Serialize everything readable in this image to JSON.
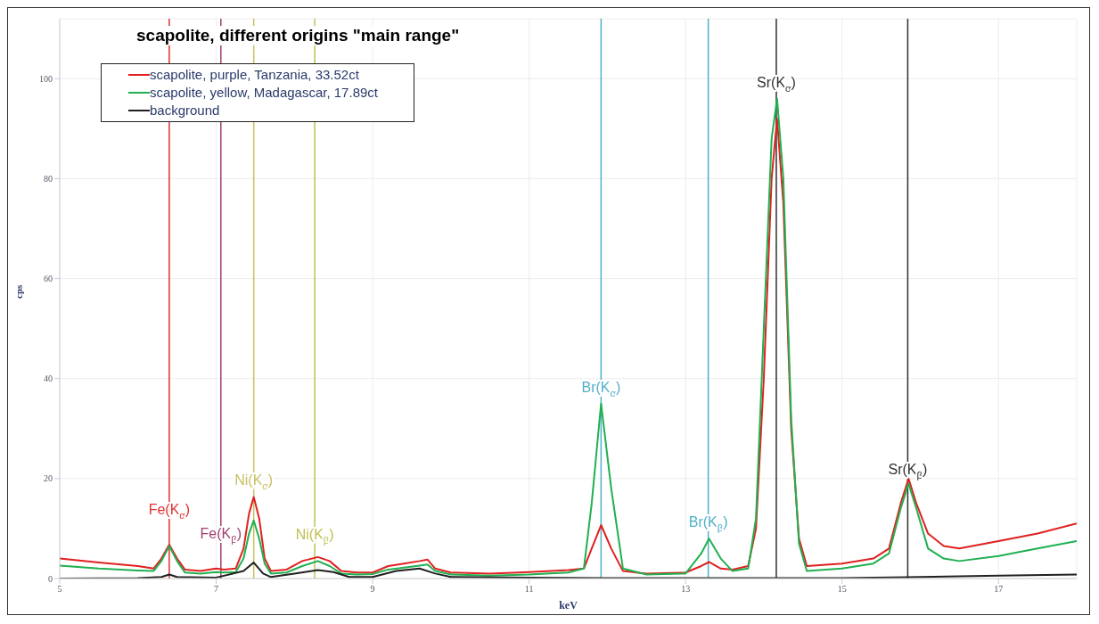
{
  "chart_data": {
    "type": "line",
    "title": "scapolite, different origins \"main range\"",
    "xlabel": "keV",
    "ylabel": "cps",
    "xlim": [
      5,
      18
    ],
    "xticks": [
      5,
      7,
      9,
      11,
      13,
      15,
      17
    ],
    "ylim": [
      0,
      112
    ],
    "yticks": [
      0,
      20,
      40,
      60,
      80,
      100
    ],
    "grid": true,
    "legend": "top left",
    "marker": "none",
    "line_style": "solid",
    "series": [
      {
        "name": "scapolite, purple, Tanzania, 33.52ct",
        "color": "#e02020",
        "x": [
          5.0,
          5.5,
          6.0,
          6.2,
          6.3,
          6.4,
          6.5,
          6.6,
          6.8,
          7.0,
          7.1,
          7.25,
          7.35,
          7.42,
          7.48,
          7.55,
          7.62,
          7.7,
          7.9,
          8.1,
          8.3,
          8.45,
          8.6,
          8.8,
          9.0,
          9.2,
          9.4,
          9.6,
          9.7,
          9.8,
          10.0,
          10.5,
          11.0,
          11.5,
          11.7,
          11.8,
          11.92,
          12.05,
          12.2,
          12.5,
          13.0,
          13.2,
          13.3,
          13.45,
          13.6,
          13.8,
          13.9,
          14.0,
          14.1,
          14.17,
          14.25,
          14.35,
          14.45,
          14.55,
          15.0,
          15.4,
          15.6,
          15.75,
          15.85,
          15.95,
          16.1,
          16.3,
          16.5,
          17.0,
          17.5,
          18.0
        ],
        "values": [
          4,
          3.2,
          2.5,
          2,
          4,
          6.8,
          4,
          1.8,
          1.5,
          2,
          1.8,
          2,
          6,
          13,
          16.3,
          12,
          4,
          1.5,
          1.8,
          3.5,
          4.3,
          3.5,
          1.5,
          1.2,
          1.2,
          2.5,
          3,
          3.5,
          3.8,
          2,
          1.2,
          1,
          1.3,
          1.7,
          2,
          6,
          10.7,
          6,
          1.5,
          1,
          1.2,
          2.5,
          3.3,
          2,
          1.8,
          2.5,
          10,
          40,
          80,
          92,
          75,
          30,
          8,
          2.5,
          3,
          4,
          6,
          15,
          20,
          15,
          9,
          6.5,
          6,
          7.5,
          9,
          11
        ]
      },
      {
        "name": "scapolite, yellow, Madagascar, 17.89ct",
        "color": "#20b050",
        "x": [
          5.0,
          5.5,
          6.0,
          6.2,
          6.3,
          6.4,
          6.5,
          6.6,
          6.8,
          7.0,
          7.1,
          7.25,
          7.35,
          7.42,
          7.48,
          7.55,
          7.62,
          7.7,
          7.9,
          8.1,
          8.3,
          8.45,
          8.6,
          8.8,
          9.0,
          9.2,
          9.4,
          9.6,
          9.7,
          9.8,
          10.0,
          10.5,
          11.0,
          11.5,
          11.7,
          11.8,
          11.92,
          12.05,
          12.2,
          12.5,
          13.0,
          13.2,
          13.3,
          13.45,
          13.6,
          13.8,
          13.9,
          14.0,
          14.1,
          14.17,
          14.25,
          14.35,
          14.45,
          14.55,
          15.0,
          15.4,
          15.6,
          15.75,
          15.85,
          15.95,
          16.1,
          16.3,
          16.5,
          17.0,
          17.5,
          18.0
        ],
        "values": [
          2.6,
          2,
          1.6,
          1.5,
          3.5,
          6.5,
          3.5,
          1.2,
          1,
          1.3,
          1.2,
          1.3,
          4,
          9,
          11.6,
          8,
          3,
          1,
          1.2,
          2.5,
          3.5,
          2.5,
          1,
          0.8,
          0.9,
          1.8,
          2.2,
          2.6,
          2.8,
          1.5,
          0.8,
          0.6,
          0.8,
          1.2,
          2,
          15,
          35,
          18,
          2,
          0.8,
          1,
          5,
          8,
          4,
          1.5,
          2,
          12,
          50,
          88,
          96,
          80,
          32,
          7,
          1.5,
          2,
          3,
          5,
          14,
          19,
          14,
          6,
          4,
          3.5,
          4.5,
          6,
          7.5
        ]
      },
      {
        "name": "background",
        "color": "#202020",
        "x": [
          5.0,
          6.0,
          6.3,
          6.4,
          6.5,
          7.0,
          7.35,
          7.48,
          7.6,
          7.7,
          8.0,
          8.3,
          8.5,
          8.7,
          9.0,
          9.3,
          9.6,
          9.8,
          10.0,
          11.0,
          12.0,
          13.0,
          14.0,
          15.0,
          16.0,
          17.0,
          18.0
        ],
        "values": [
          0,
          0.1,
          0.3,
          0.8,
          0.3,
          0.2,
          1.5,
          3.2,
          1,
          0.3,
          1,
          1.7,
          1.3,
          0.3,
          0.3,
          1.5,
          2,
          1,
          0.3,
          0.2,
          0.1,
          0.1,
          0.1,
          0.1,
          0.3,
          0.6,
          0.8
        ]
      }
    ],
    "ref_lines": [
      {
        "axis": "x",
        "value": 6.4,
        "color": "#e03030"
      },
      {
        "axis": "x",
        "value": 7.06,
        "color": "#a04070"
      },
      {
        "axis": "x",
        "value": 7.48,
        "color": "#c8c060"
      },
      {
        "axis": "x",
        "value": 8.26,
        "color": "#c0c050"
      },
      {
        "axis": "x",
        "value": 11.92,
        "color": "#50b0c8"
      },
      {
        "axis": "x",
        "value": 13.29,
        "color": "#50b0c8"
      },
      {
        "axis": "x",
        "value": 14.16,
        "color": "#303030"
      },
      {
        "axis": "x",
        "value": 15.84,
        "color": "#303030"
      }
    ],
    "annotations": [
      {
        "text": "Fe(K$_{α}$)",
        "x": 6.4,
        "y": 13.5
      },
      {
        "text": "Fe(K$_{β}$)",
        "x": 7.06,
        "y": 8.7
      },
      {
        "text": "Ni(K$_{α}$)",
        "x": 7.48,
        "y": 19.5
      },
      {
        "text": "Ni(K$_{β}$)",
        "x": 8.26,
        "y": 8.5
      },
      {
        "text": "Br(K$_{α}$)",
        "x": 11.92,
        "y": 38
      },
      {
        "text": "Br(K$_{β}$)",
        "x": 13.29,
        "y": 11
      },
      {
        "text": "Sr(K$_{α}$)",
        "x": 14.16,
        "y": 99
      },
      {
        "text": "Sr(K$_{β}$)",
        "x": 15.84,
        "y": 21.5
      }
    ]
  }
}
